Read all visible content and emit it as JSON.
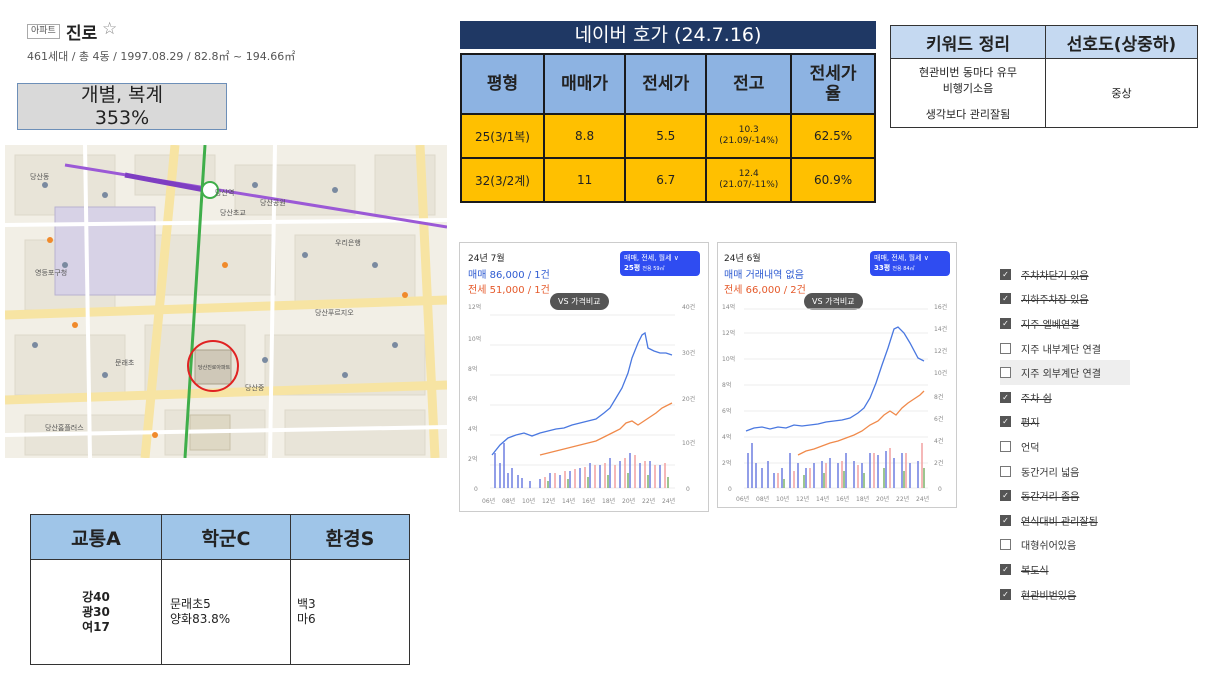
{
  "apartment": {
    "tag": "아파트",
    "name": "진로",
    "info": "461세대 / 총 4동 / 1997.08.29 / 82.8㎡ ~ 194.66㎡",
    "type_line1": "개별, 복계",
    "type_line2": "353%"
  },
  "map": {
    "station": "당산역",
    "target_label": "당산진로아파트",
    "labels": [
      "당산동",
      "당산초교",
      "당산공원",
      "영등포구청",
      "당산중",
      "문래초",
      "당산푸르지오",
      "당산역",
      "우리은행",
      "당산홈플러스"
    ]
  },
  "naver": {
    "title": "네이버 호가 (24.7.16)",
    "headers": [
      "평형",
      "매매가",
      "전세가",
      "전고",
      "전세가율"
    ],
    "rows": [
      {
        "type": "25(3/1복)",
        "sale": "8.8",
        "jeonse": "5.5",
        "high_1": "10.3",
        "high_2": "(21.09/-14%)",
        "ratio": "62.5%"
      },
      {
        "type": "32(3/2계)",
        "sale": "11",
        "jeonse": "6.7",
        "high_1": "12.4",
        "high_2": "(21.07/-11%)",
        "ratio": "60.9%"
      }
    ]
  },
  "keywords": {
    "header1": "키워드 정리",
    "header2": "선호도(상중하)",
    "line1": "현관비번 동마다 유무",
    "line2": "비행기소음",
    "line3": "생각보다 관리잘됨",
    "rating": "중상"
  },
  "charts": [
    {
      "date": "24년 7월",
      "sale": "매매 86,000 / 1건",
      "jeonse": "전세 51,000 / 1건",
      "filter": "매매, 전세, 월세 ∨",
      "size": "25평",
      "size_sub": "전용 59㎡",
      "vs": "VS 가격비교",
      "left_axis": [
        "12억",
        "10억",
        "8억",
        "6억",
        "4억",
        "2억",
        "0"
      ],
      "right_axis": [
        "40건",
        "30건",
        "20건",
        "10건",
        "0"
      ],
      "x_labels": [
        "06년",
        "08년",
        "10년",
        "12년",
        "14년",
        "16년",
        "18년",
        "20년",
        "22년",
        "24년"
      ]
    },
    {
      "date": "24년 6월",
      "sale": "매매 거래내역 없음",
      "jeonse": "전세 66,000 / 2건",
      "filter": "매매, 전세, 월세 ∨",
      "size": "33평",
      "size_sub": "전용 84㎡",
      "vs": "VS 가격비교",
      "left_axis": [
        "14억",
        "12억",
        "10억",
        "8억",
        "6억",
        "4억",
        "2억",
        "0"
      ],
      "right_axis": [
        "16건",
        "14건",
        "12건",
        "10건",
        "8건",
        "6건",
        "4건",
        "2건",
        "0"
      ],
      "x_labels": [
        "06년",
        "08년",
        "10년",
        "12년",
        "14년",
        "16년",
        "18년",
        "20년",
        "22년",
        "24년"
      ]
    }
  ],
  "checklist": [
    {
      "label": "주차차단기 있음",
      "checked": true
    },
    {
      "label": "지하주차장 있음",
      "checked": true
    },
    {
      "label": "지주 엘베연결",
      "checked": true
    },
    {
      "label": "지주 내부계단 연결",
      "checked": false
    },
    {
      "label": "지주 외부계단 연결",
      "checked": false
    },
    {
      "label": "주차 쉼",
      "checked": true
    },
    {
      "label": "평지",
      "checked": true
    },
    {
      "label": "언덕",
      "checked": false
    },
    {
      "label": "동간거리 넓음",
      "checked": false
    },
    {
      "label": "동간거리 좁음",
      "checked": true
    },
    {
      "label": "연식대비 관리잘됨",
      "checked": true
    },
    {
      "label": "대형쉬어있음",
      "checked": false
    },
    {
      "label": "복도식",
      "checked": true
    },
    {
      "label": "현관비번있음",
      "checked": true
    }
  ],
  "tse": {
    "headers": [
      "교통A",
      "학군C",
      "환경S"
    ],
    "traffic": [
      "강40",
      "광30",
      "여17"
    ],
    "school": [
      "문래초5",
      "양화83.8%"
    ],
    "env": [
      "백3",
      "마6"
    ]
  },
  "colors": {
    "navy": "#1f3864",
    "header_blue": "#8db3e2",
    "orange": "#ffc000",
    "kw_blue": "#c5d9f1",
    "tse_blue": "#9fc5e8",
    "sale_line": "#4a78e0",
    "jeonse_line": "#f08a4b"
  }
}
